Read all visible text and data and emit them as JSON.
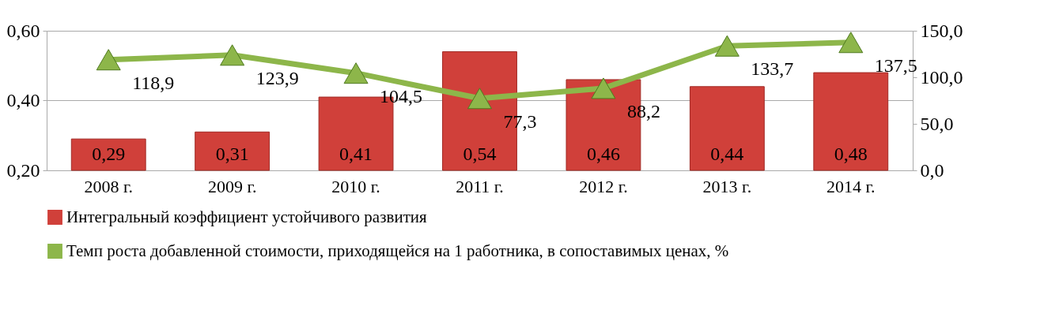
{
  "chart_data": {
    "type": "bar",
    "categories": [
      "2008 г.",
      "2009 г.",
      "2010 г.",
      "2011 г.",
      "2012 г.",
      "2013 г.",
      "2014 г."
    ],
    "series": [
      {
        "name": "Интегральный коэффициент устойчивого развития",
        "color": "#d0403a",
        "values": [
          0.29,
          0.31,
          0.41,
          0.54,
          0.46,
          0.44,
          0.48
        ],
        "value_labels": [
          "0,29",
          "0,31",
          "0,41",
          "0,54",
          "0,46",
          "0,44",
          "0,48"
        ]
      },
      {
        "name": "Темп роста добавленной стоимости, приходящейся на 1 работника, в сопоставимых ценах, %",
        "type": "line",
        "axis": "y2",
        "color": "#8db64a",
        "values": [
          118.9,
          123.9,
          104.5,
          77.3,
          88.2,
          133.7,
          137.5
        ],
        "value_labels": [
          "118,9",
          "123,9",
          "104,5",
          "77,3",
          "88,2",
          "133,7",
          "137,5"
        ]
      }
    ],
    "ylim": [
      0.2,
      0.6
    ],
    "yticks": [
      {
        "value": 0.2,
        "label": "0,20"
      },
      {
        "value": 0.4,
        "label": "0,40"
      },
      {
        "value": 0.6,
        "label": "0,60"
      }
    ],
    "y2lim": [
      0,
      150
    ],
    "y2ticks": [
      {
        "value": 0,
        "label": "0,0"
      },
      {
        "value": 50,
        "label": "50,0"
      },
      {
        "value": 100,
        "label": "100,0"
      },
      {
        "value": 150,
        "label": "150,0"
      }
    ],
    "grid": "y",
    "legend": "bottom",
    "marker": "triangle"
  }
}
